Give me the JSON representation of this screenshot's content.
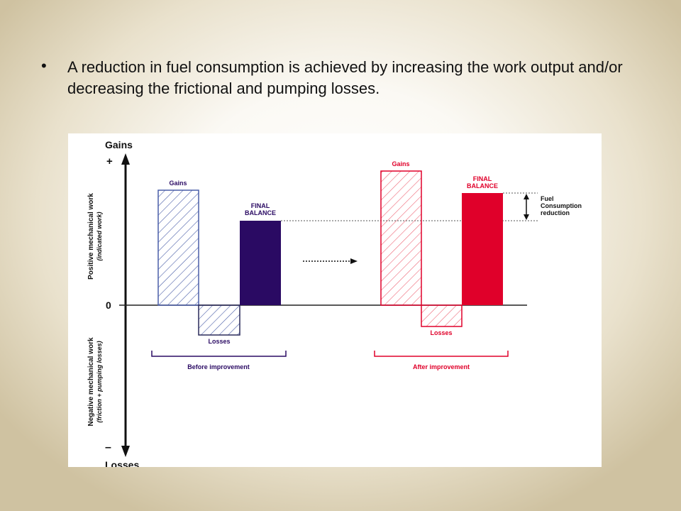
{
  "slide": {
    "bullet": "•",
    "text": "A reduction in fuel consumption is achieved by increasing the work output and/or decreasing the frictional and pumping losses."
  },
  "diagram": {
    "axis": {
      "top_label": "Gains",
      "bottom_label": "Losses",
      "plus": "+",
      "minus": "–",
      "zero": "0",
      "positive_label": "Positive mechanical work",
      "positive_sub": "(indicated work)",
      "negative_label": "Negative mechanical work",
      "negative_sub": "(friction + pumping losses)"
    },
    "before": {
      "gains_label": "Gains",
      "losses_label": "Losses",
      "final_label_1": "FINAL",
      "final_label_2": "BALANCE",
      "group_label": "Before improvement"
    },
    "after": {
      "gains_label": "Gains",
      "losses_label": "Losses",
      "final_label_1": "FINAL",
      "final_label_2": "BALANCE",
      "group_label": "After improvement"
    },
    "annotation": {
      "line1": "Fuel",
      "line2": "Consumption",
      "line3": "reduction"
    },
    "colors": {
      "before": "#2a0a63",
      "before_hatch": "#4a5ea8",
      "after": "#e0002a",
      "after_hatch": "#ee6676",
      "axis": "#111111"
    }
  }
}
